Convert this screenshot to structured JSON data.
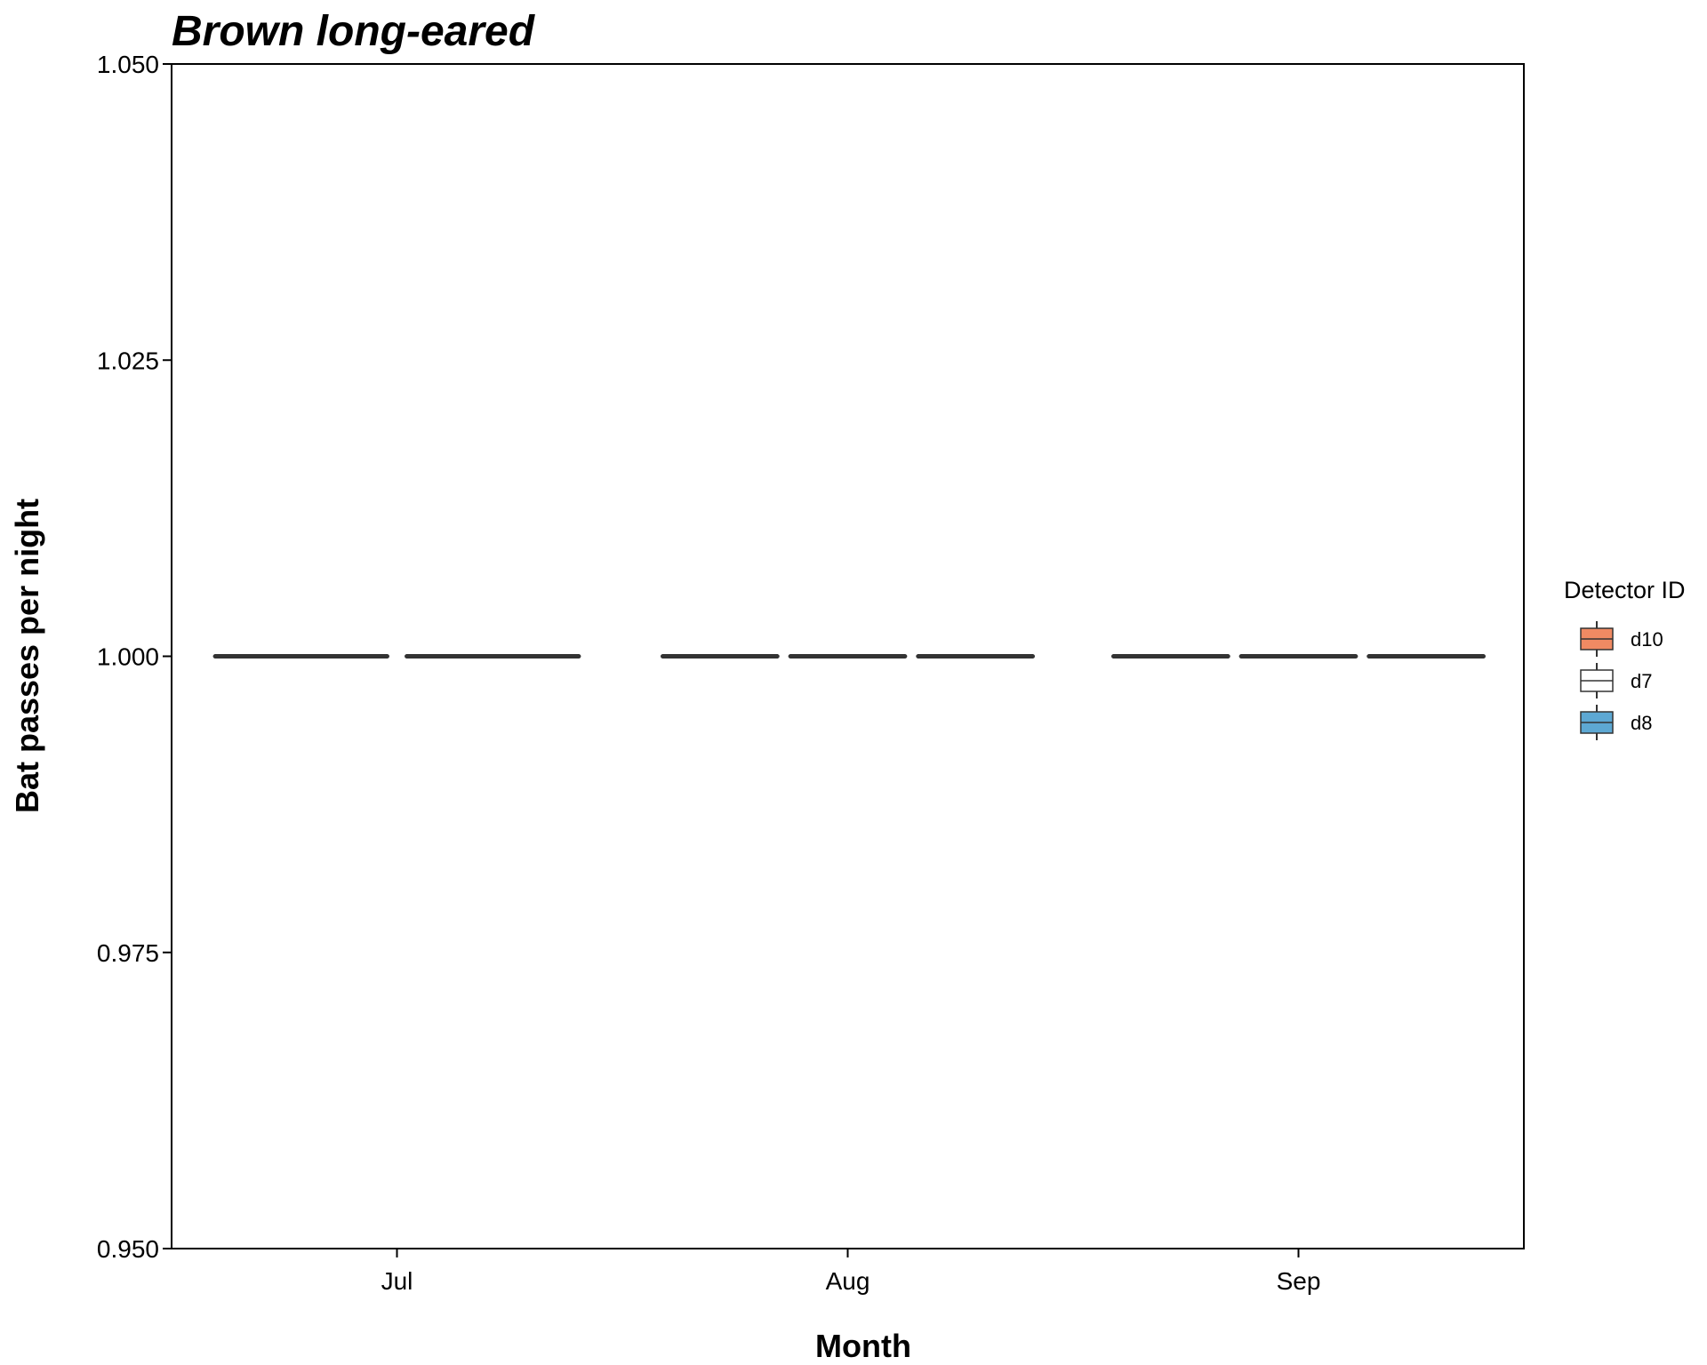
{
  "chart_data": {
    "type": "box",
    "title": "Brown long-eared",
    "xlabel": "Month",
    "ylabel": "Bat passes per night",
    "categories": [
      "Jul",
      "Aug",
      "Sep"
    ],
    "ylim": [
      0.95,
      1.05
    ],
    "yticks": [
      "0.950",
      "0.975",
      "1.000",
      "1.025",
      "1.050"
    ],
    "ytick_values": [
      0.95,
      0.975,
      1.0,
      1.025,
      1.05
    ],
    "grid": false,
    "legend": {
      "title": "Detector ID",
      "position": "right",
      "entries": [
        "d10",
        "d7",
        "d8"
      ]
    },
    "series": [
      {
        "name": "d10",
        "color": "#f08a63",
        "values": [
          1,
          1,
          1
        ]
      },
      {
        "name": "d7",
        "color": "#ffffff",
        "values": [
          1,
          1,
          1
        ]
      },
      {
        "name": "d8",
        "color": "#5da8d3",
        "values": [
          null,
          1,
          1
        ]
      }
    ]
  }
}
